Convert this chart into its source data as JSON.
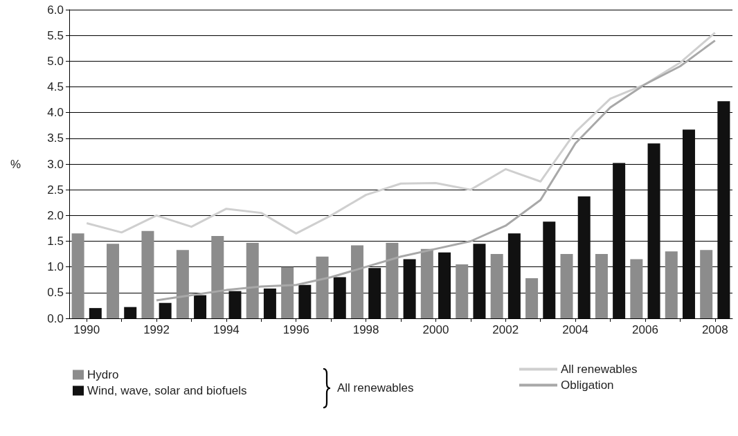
{
  "chart_data": {
    "type": "bar",
    "ylabel": "%",
    "categories": [
      "1990",
      null,
      "1992",
      null,
      "1994",
      null,
      "1996",
      null,
      "1998",
      null,
      "2000",
      null,
      "2002",
      null,
      "2004",
      null,
      "2006",
      null,
      "2008"
    ],
    "ylim": [
      0,
      6
    ],
    "yticks": [
      {
        "value": 0,
        "label": "0.0"
      },
      0.5,
      {
        "value": 1,
        "label": "1.0"
      },
      1.5,
      {
        "value": 2,
        "label": "2.0"
      },
      2.5,
      {
        "value": 3,
        "label": "3.0"
      },
      3.5,
      {
        "value": 4,
        "label": "4.0"
      },
      4.5,
      {
        "value": 5,
        "label": "5.0"
      },
      5.5,
      {
        "value": 6,
        "label": "6.0"
      }
    ],
    "grid": "y",
    "legend": "bottom",
    "series": [
      {
        "name": "Hydro",
        "color": "#8c8c8c",
        "values": [
          1.65,
          1.45,
          1.7,
          1.33,
          1.6,
          1.47,
          1.0,
          1.2,
          1.42,
          1.47,
          1.35,
          1.05,
          1.25,
          0.78,
          1.25,
          1.25,
          1.15,
          1.3,
          1.33
        ]
      },
      {
        "name": "Wind, wave, solar and biofuels",
        "color": "#111111",
        "values": [
          0.2,
          0.22,
          0.3,
          0.45,
          0.53,
          0.58,
          0.65,
          0.8,
          0.98,
          1.15,
          1.28,
          1.45,
          1.65,
          1.88,
          2.37,
          3.02,
          3.4,
          3.67,
          4.22
        ]
      },
      {
        "name": "All renewables",
        "type": "line",
        "color": "#cfcfcf",
        "values": [
          1.85,
          1.67,
          2.0,
          1.78,
          2.13,
          2.05,
          1.65,
          2.0,
          2.4,
          2.62,
          2.63,
          2.5,
          2.9,
          2.66,
          3.62,
          4.27,
          4.55,
          4.97,
          5.55
        ]
      },
      {
        "name": "Obligation",
        "type": "line",
        "color": "#a8a8a8",
        "values": [
          null,
          null,
          0.35,
          0.45,
          0.55,
          0.62,
          0.65,
          0.8,
          1.0,
          1.2,
          1.35,
          1.5,
          1.8,
          2.3,
          3.4,
          4.1,
          4.55,
          4.9,
          5.4
        ]
      }
    ],
    "annotations": [
      "All renewables"
    ]
  }
}
